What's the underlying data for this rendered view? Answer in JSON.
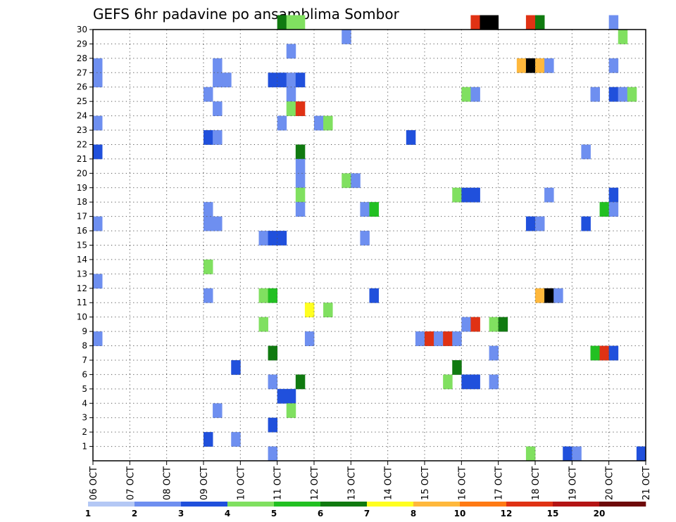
{
  "chart_data": {
    "type": "heatmap",
    "title": "GEFS 6hr padavine po ansamblima Sombor",
    "x_labels": [
      "06 OCT",
      "07 OCT",
      "08 OCT",
      "09 OCT",
      "10 OCT",
      "11 OCT",
      "12 OCT",
      "13 OCT",
      "14 OCT",
      "15 OCT",
      "16 OCT",
      "17 OCT",
      "18 OCT",
      "19 OCT",
      "20 OCT",
      "21 OCT"
    ],
    "x_range": [
      0,
      60
    ],
    "y_ticks": [
      1,
      2,
      3,
      4,
      5,
      6,
      7,
      8,
      9,
      10,
      11,
      12,
      13,
      14,
      15,
      16,
      17,
      18,
      19,
      20,
      21,
      22,
      23,
      24,
      25,
      26,
      27,
      28,
      29,
      30
    ],
    "y_range": [
      0,
      30
    ],
    "grid": true,
    "colorbar": {
      "labels": [
        "1",
        "2",
        "3",
        "4",
        "5",
        "6",
        "7",
        "8",
        "10",
        "12",
        "15",
        "20"
      ],
      "colors": [
        "#b4c8f5",
        "#6e8ff0",
        "#2050dc",
        "#80e060",
        "#22c022",
        "#107a10",
        "#ffff20",
        "#ffb83c",
        "#ff7a14",
        "#e03214",
        "#b41414",
        "#6e0a0a"
      ]
    },
    "cells": [
      [
        20,
        30,
        5
      ],
      [
        21,
        30,
        3
      ],
      [
        22,
        30,
        3
      ],
      [
        41,
        30,
        9
      ],
      [
        42,
        30,
        12
      ],
      [
        43,
        30,
        15
      ],
      [
        47,
        30,
        9
      ],
      [
        48,
        30,
        5
      ],
      [
        56,
        30,
        1
      ],
      [
        27,
        29,
        1
      ],
      [
        57,
        29,
        3
      ],
      [
        21,
        28,
        1
      ],
      [
        0,
        27,
        1
      ],
      [
        13,
        27,
        1
      ],
      [
        46,
        27,
        7
      ],
      [
        47,
        27,
        14
      ],
      [
        48,
        27,
        7
      ],
      [
        49,
        27,
        1
      ],
      [
        56,
        27,
        1
      ],
      [
        0,
        26,
        1
      ],
      [
        13,
        26,
        1
      ],
      [
        14,
        26,
        1
      ],
      [
        19,
        26,
        2
      ],
      [
        20,
        26,
        2
      ],
      [
        21,
        26,
        1
      ],
      [
        22,
        26,
        2
      ],
      [
        12,
        25,
        1
      ],
      [
        21,
        25,
        1
      ],
      [
        40,
        25,
        3
      ],
      [
        41,
        25,
        1
      ],
      [
        54,
        25,
        1
      ],
      [
        56,
        25,
        2
      ],
      [
        57,
        25,
        1
      ],
      [
        58,
        25,
        3
      ],
      [
        13,
        24,
        1
      ],
      [
        21,
        24,
        3
      ],
      [
        22,
        24,
        9
      ],
      [
        0,
        23,
        1
      ],
      [
        20,
        23,
        1
      ],
      [
        24,
        23,
        1
      ],
      [
        25,
        23,
        3
      ],
      [
        12,
        22,
        2
      ],
      [
        13,
        22,
        1
      ],
      [
        34,
        22,
        2
      ],
      [
        0,
        21,
        2
      ],
      [
        22,
        21,
        5
      ],
      [
        53,
        21,
        1
      ],
      [
        22,
        20,
        1
      ],
      [
        22,
        19,
        1
      ],
      [
        27,
        19,
        3
      ],
      [
        28,
        19,
        1
      ],
      [
        22,
        18,
        3
      ],
      [
        39,
        18,
        3
      ],
      [
        40,
        18,
        2
      ],
      [
        41,
        18,
        2
      ],
      [
        49,
        18,
        1
      ],
      [
        56,
        18,
        2
      ],
      [
        12,
        17,
        1
      ],
      [
        22,
        17,
        1
      ],
      [
        29,
        17,
        1
      ],
      [
        30,
        17,
        4
      ],
      [
        55,
        17,
        4
      ],
      [
        56,
        17,
        1
      ],
      [
        0,
        16,
        1
      ],
      [
        12,
        16,
        1
      ],
      [
        13,
        16,
        1
      ],
      [
        47,
        16,
        2
      ],
      [
        48,
        16,
        1
      ],
      [
        53,
        16,
        2
      ],
      [
        18,
        15,
        1
      ],
      [
        19,
        15,
        2
      ],
      [
        20,
        15,
        2
      ],
      [
        29,
        15,
        1
      ],
      [
        12,
        13,
        3
      ],
      [
        0,
        12,
        1
      ],
      [
        12,
        11,
        1
      ],
      [
        18,
        11,
        3
      ],
      [
        19,
        11,
        4
      ],
      [
        30,
        11,
        2
      ],
      [
        48,
        11,
        7
      ],
      [
        49,
        11,
        14
      ],
      [
        50,
        11,
        1
      ],
      [
        23,
        10,
        6
      ],
      [
        25,
        10,
        3
      ],
      [
        18,
        9,
        3
      ],
      [
        40,
        9,
        1
      ],
      [
        41,
        9,
        9
      ],
      [
        43,
        9,
        3
      ],
      [
        44,
        9,
        5
      ],
      [
        0,
        8,
        1
      ],
      [
        23,
        8,
        1
      ],
      [
        35,
        8,
        1
      ],
      [
        36,
        8,
        9
      ],
      [
        37,
        8,
        1
      ],
      [
        38,
        8,
        9
      ],
      [
        39,
        8,
        1
      ],
      [
        19,
        7,
        5
      ],
      [
        43,
        7,
        1
      ],
      [
        54,
        7,
        4
      ],
      [
        55,
        7,
        9
      ],
      [
        56,
        7,
        2
      ],
      [
        15,
        6,
        2
      ],
      [
        39,
        6,
        5
      ],
      [
        19,
        5,
        1
      ],
      [
        22,
        5,
        5
      ],
      [
        38,
        5,
        3
      ],
      [
        40,
        5,
        2
      ],
      [
        41,
        5,
        2
      ],
      [
        43,
        5,
        1
      ],
      [
        20,
        4,
        2
      ],
      [
        21,
        4,
        2
      ],
      [
        13,
        3,
        1
      ],
      [
        21,
        3,
        3
      ],
      [
        19,
        2,
        2
      ],
      [
        12,
        1,
        2
      ],
      [
        15,
        1,
        1
      ],
      [
        19,
        0,
        1
      ],
      [
        47,
        0,
        3
      ],
      [
        51,
        0,
        2
      ],
      [
        52,
        0,
        1
      ],
      [
        59,
        0,
        2
      ]
    ]
  }
}
